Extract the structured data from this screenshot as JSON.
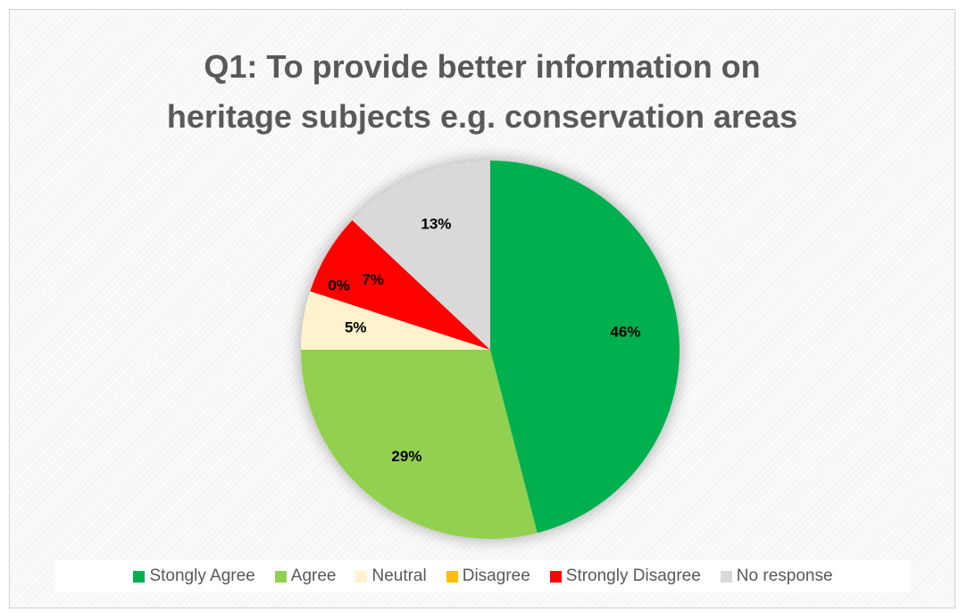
{
  "chart_data": {
    "type": "pie",
    "title_lines": [
      "Q1: To provide better information on",
      "heritage subjects e.g. conservation areas"
    ],
    "categories": [
      "Stongly Agree",
      "Agree",
      "Neutral",
      "Disagree",
      "Strongly Disagree",
      "No response"
    ],
    "values": [
      46,
      29,
      5,
      0,
      7,
      13
    ],
    "labels": [
      "46%",
      "29%",
      "5%",
      "0%",
      "7%",
      "13%"
    ],
    "colors": [
      "#00b050",
      "#92d050",
      "#fff2cc",
      "#ffc000",
      "#ff0000",
      "#d9d9d9"
    ],
    "legend_position": "bottom"
  }
}
